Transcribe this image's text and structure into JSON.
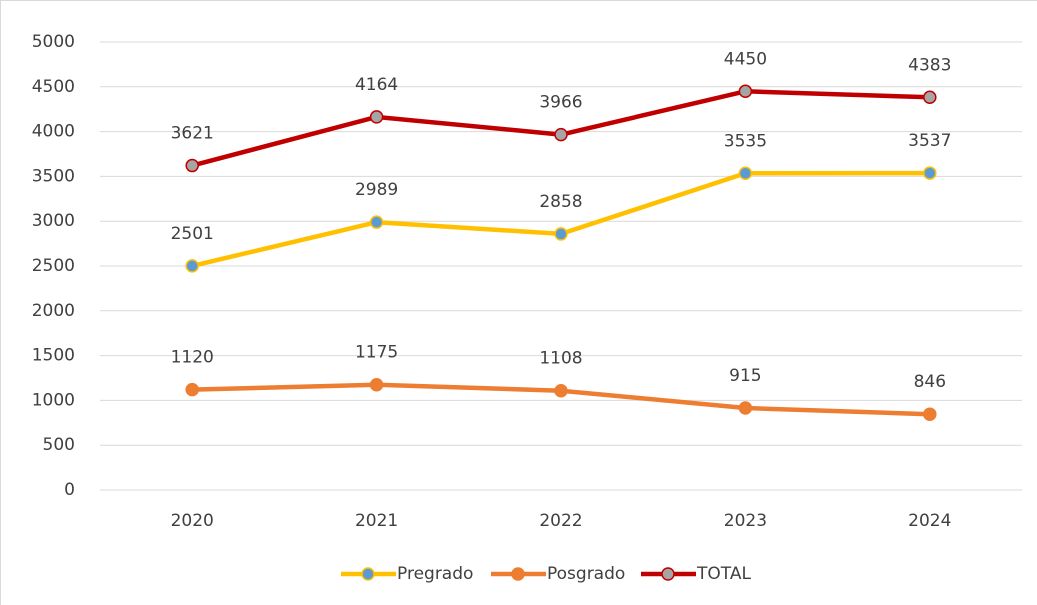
{
  "chart_data": {
    "type": "line",
    "categories": [
      "2020",
      "2021",
      "2022",
      "2023",
      "2024"
    ],
    "series": [
      {
        "name": "Pregrado",
        "color": "#FFC000",
        "marker_color": "#5B9BD5",
        "values": [
          2501,
          2989,
          2858,
          3535,
          3537
        ]
      },
      {
        "name": "Posgrado",
        "color": "#ED7D31",
        "marker_color": "#ED7D31",
        "values": [
          1120,
          1175,
          1108,
          915,
          846
        ]
      },
      {
        "name": "TOTAL",
        "color": "#C00000",
        "marker_color": "#A5A5A5",
        "values": [
          3621,
          4164,
          3966,
          4450,
          4383
        ]
      }
    ],
    "ylim": [
      0,
      5000
    ],
    "yticks": [
      0,
      500,
      1000,
      1500,
      2000,
      2500,
      3000,
      3500,
      4000,
      4500,
      5000
    ],
    "grid": true,
    "legend": "bottom",
    "data_labels": true
  }
}
